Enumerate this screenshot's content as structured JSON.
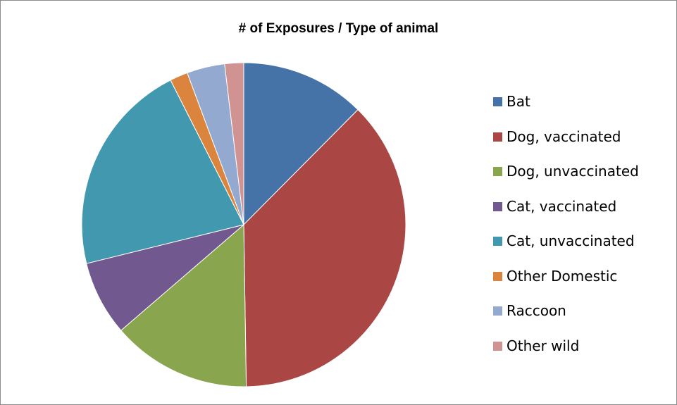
{
  "chart_data": {
    "type": "pie",
    "title": "# of Exposures / Type of animal",
    "categories": [
      "Bat",
      "Dog, vaccinated",
      "Dog, unvaccinated",
      "Cat, vaccinated",
      "Cat, unvaccinated",
      "Other Domestic",
      "Raccoon",
      "Other wild"
    ],
    "values": [
      12.5,
      37.5,
      14.0,
      7.5,
      21.5,
      1.8,
      3.8,
      1.9
    ],
    "colors": [
      "#4572a7",
      "#aa4643",
      "#89a54e",
      "#71588f",
      "#4198af",
      "#db843d",
      "#93a9cf",
      "#d19392"
    ],
    "legend_position": "right"
  }
}
